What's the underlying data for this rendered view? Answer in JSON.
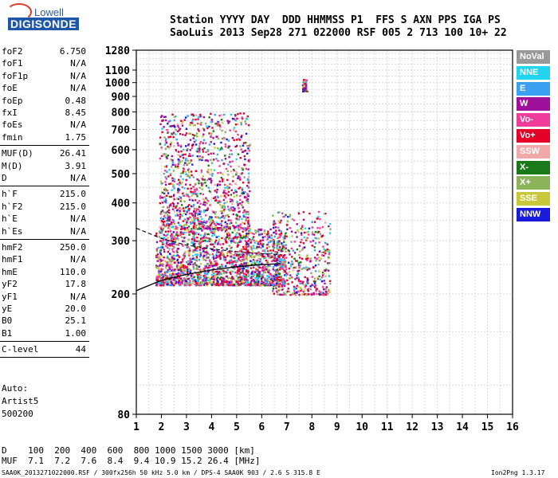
{
  "logo": {
    "top": "Lowell",
    "bottom": "DIGISONDE"
  },
  "header": {
    "row1": "Station YYYY DAY  DDD HHMMSS P1  FFS S AXN PPS IGA PS",
    "row2": "SaoLuis 2013 Sep28 271 022000 RSF 005 2 713 100 10+ 22"
  },
  "params_group1": [
    {
      "k": "foF2",
      "v": "6.750"
    },
    {
      "k": "foF1",
      "v": "N/A"
    },
    {
      "k": "foF1p",
      "v": "N/A"
    },
    {
      "k": "foE",
      "v": "N/A"
    },
    {
      "k": "foEp",
      "v": "0.48"
    },
    {
      "k": "fxI",
      "v": "8.45"
    },
    {
      "k": "foEs",
      "v": "N/A"
    },
    {
      "k": "fmin",
      "v": "1.75"
    }
  ],
  "params_group2": [
    {
      "k": "MUF(D)",
      "v": "26.41"
    },
    {
      "k": "M(D)",
      "v": "3.91"
    },
    {
      "k": "D",
      "v": "N/A"
    }
  ],
  "params_group3": [
    {
      "k": "h`F",
      "v": "215.0"
    },
    {
      "k": "h`F2",
      "v": "215.0"
    },
    {
      "k": "h`E",
      "v": "N/A"
    },
    {
      "k": "h`Es",
      "v": "N/A"
    }
  ],
  "params_group4": [
    {
      "k": "hmF2",
      "v": "250.0"
    },
    {
      "k": "hmF1",
      "v": "N/A"
    },
    {
      "k": "hmE",
      "v": "110.0"
    },
    {
      "k": "yF2",
      "v": "17.8"
    },
    {
      "k": "yF1",
      "v": "N/A"
    },
    {
      "k": "yE",
      "v": "20.0"
    },
    {
      "k": "B0",
      "v": "25.1"
    },
    {
      "k": "B1",
      "v": "1.00"
    }
  ],
  "c_level": {
    "k": "C-level",
    "v": "44"
  },
  "autoscale": [
    "Auto:",
    "Artist5",
    "500200"
  ],
  "legend": [
    {
      "label": "NoVal",
      "color": "#999999"
    },
    {
      "label": "NNE",
      "color": "#22d4ee"
    },
    {
      "label": "E",
      "color": "#3ba0f0"
    },
    {
      "label": "W",
      "color": "#a0119b"
    },
    {
      "label": "Vo-",
      "color": "#f03c9a"
    },
    {
      "label": "Vo+",
      "color": "#e60028"
    },
    {
      "label": "SSW",
      "color": "#f0a8a8"
    },
    {
      "label": "X-",
      "color": "#1a7a1a"
    },
    {
      "label": "X+",
      "color": "#8ab35a"
    },
    {
      "label": "SSE",
      "color": "#c8c83a"
    },
    {
      "label": "NNW",
      "color": "#1a1adc"
    }
  ],
  "bottom_table": {
    "row1": "D    100  200  400  600  800 1000 1500 3000 [km]",
    "row2": "MUF  7.1  7.2  7.6  8.4  9.4 10.9 15.2 26.4 [MHz]"
  },
  "footer_left": "SAA0K_2013271022000.RSF / 300fx256h 50 kHz 5.0 km / DPS-4 SAA0K 903 / 2.6 S 315.8 E",
  "footer_right": "Ion2Png 1.3.17",
  "chart_data": {
    "type": "scatter",
    "title": "",
    "xlabel": "",
    "ylabel": "",
    "x_units": "MHz",
    "y_units": "km",
    "xlim": [
      1,
      16
    ],
    "ylim": [
      80,
      1280
    ],
    "x_ticks": [
      1,
      2,
      3,
      4,
      5,
      6,
      7,
      8,
      9,
      10,
      11,
      12,
      13,
      14,
      15,
      16
    ],
    "y_ticks": [
      80,
      200,
      300,
      400,
      500,
      600,
      700,
      800,
      900,
      1000,
      1100,
      1280
    ],
    "y_scale": "log",
    "grid": true,
    "legend_position": "right",
    "echo_clusters": [
      {
        "name": "F-trace main",
        "x_range": [
          1.75,
          6.9
        ],
        "y_range": [
          215,
          330
        ]
      },
      {
        "name": "spread F echoes",
        "x_range": [
          1.9,
          5.5
        ],
        "y_range": [
          330,
          800
        ]
      },
      {
        "name": "high-frequency patch",
        "x_range": [
          6.4,
          8.7
        ],
        "y_range": [
          200,
          380
        ]
      },
      {
        "name": "isolated column",
        "x_range": [
          7.6,
          7.8
        ],
        "y_range": [
          940,
          1030
        ]
      }
    ],
    "profile_curve": [
      [
        1.0,
        205
      ],
      [
        2.0,
        222
      ],
      [
        3.0,
        232
      ],
      [
        4.0,
        240
      ],
      [
        5.0,
        246
      ],
      [
        6.0,
        250
      ],
      [
        6.75,
        252
      ]
    ],
    "dashed_curve": [
      [
        1.0,
        330
      ],
      [
        2.0,
        305
      ],
      [
        3.0,
        290
      ],
      [
        4.0,
        282
      ],
      [
        5.0,
        276
      ],
      [
        6.0,
        272
      ],
      [
        6.75,
        270
      ]
    ]
  }
}
